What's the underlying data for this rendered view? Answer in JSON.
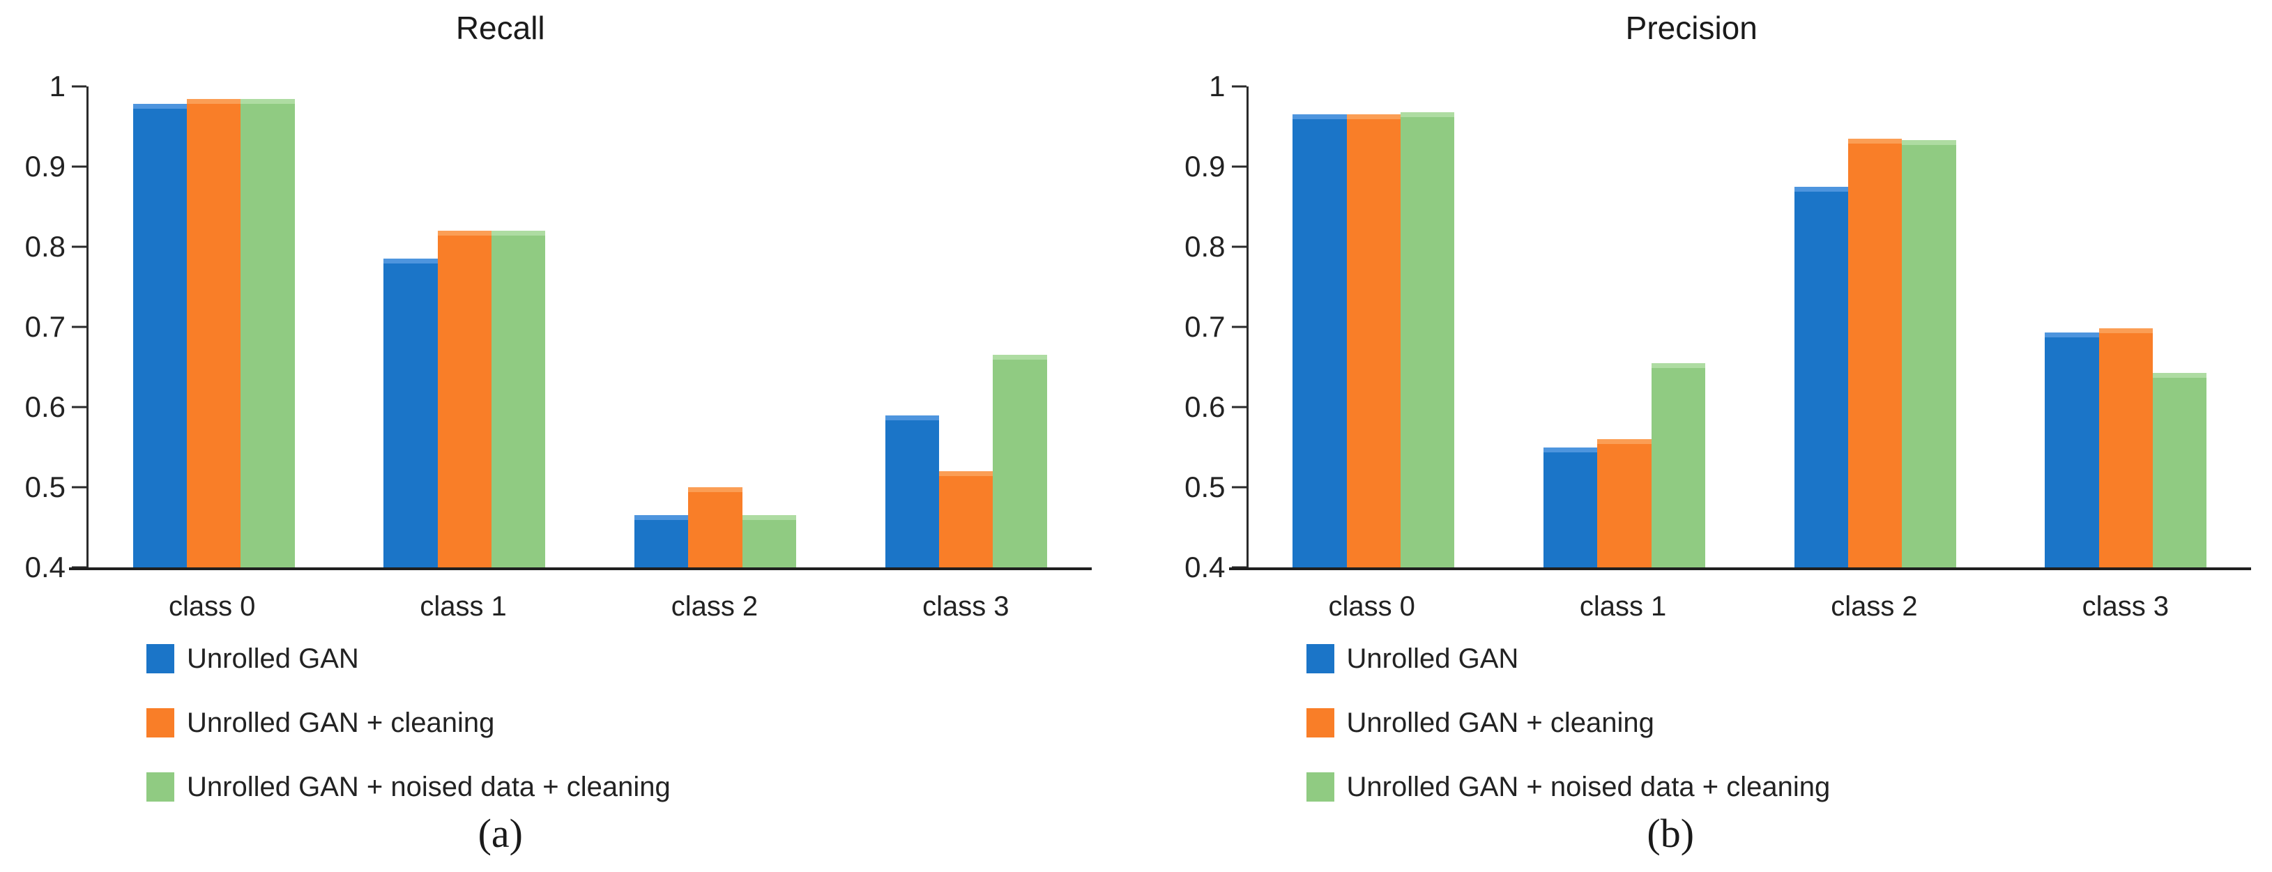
{
  "figure": {
    "panel_a_caption": "(a)",
    "panel_b_caption": "(b)"
  },
  "colors": {
    "series_blue": "#1B75C8",
    "series_orange": "#F97E28",
    "series_green": "#90CB82",
    "axis": "#2b2b2b",
    "text": "#222222"
  },
  "chart_data": [
    {
      "type": "bar",
      "title": "Recall",
      "caption": "(a)",
      "categories": [
        "class 0",
        "class 1",
        "class 2",
        "class 3"
      ],
      "series": [
        {
          "name": "Unrolled GAN",
          "color": "#1B75C8",
          "cap": "#4E95DE",
          "values": [
            0.978,
            0.785,
            0.465,
            0.59
          ]
        },
        {
          "name": "Unrolled GAN + cleaning",
          "color": "#F97E28",
          "cap": "#FB9E55",
          "values": [
            0.984,
            0.82,
            0.5,
            0.52
          ]
        },
        {
          "name": "Unrolled GAN + noised data + cleaning",
          "color": "#90CB82",
          "cap": "#AEDCA2",
          "values": [
            0.984,
            0.82,
            0.465,
            0.665
          ]
        }
      ],
      "ylim": [
        0.4,
        1.0
      ],
      "yticks": [
        1.0,
        0.9,
        0.8,
        0.7,
        0.6,
        0.5,
        0.4
      ],
      "ytick_labels": [
        "1",
        "0.9",
        "0.8",
        "0.7",
        "0.6",
        "0.5",
        "0.4"
      ],
      "xlabel": "",
      "ylabel": "",
      "grid": false,
      "legend_position": "bottom-left"
    },
    {
      "type": "bar",
      "title": "Precision",
      "caption": "(b)",
      "categories": [
        "class 0",
        "class 1",
        "class 2",
        "class 3"
      ],
      "series": [
        {
          "name": "Unrolled GAN",
          "color": "#1B75C8",
          "cap": "#4E95DE",
          "values": [
            0.965,
            0.55,
            0.875,
            0.693
          ]
        },
        {
          "name": "Unrolled GAN + cleaning",
          "color": "#F97E28",
          "cap": "#FB9E55",
          "values": [
            0.965,
            0.56,
            0.935,
            0.698
          ]
        },
        {
          "name": "Unrolled GAN + noised data + cleaning",
          "color": "#90CB82",
          "cap": "#AEDCA2",
          "values": [
            0.968,
            0.655,
            0.933,
            0.643
          ]
        }
      ],
      "ylim": [
        0.4,
        1.0
      ],
      "yticks": [
        1.0,
        0.9,
        0.8,
        0.7,
        0.6,
        0.5,
        0.4
      ],
      "ytick_labels": [
        "1",
        "0.9",
        "0.8",
        "0.7",
        "0.6",
        "0.5",
        "0.4"
      ],
      "xlabel": "",
      "ylabel": "",
      "grid": false,
      "legend_position": "bottom-left"
    }
  ]
}
